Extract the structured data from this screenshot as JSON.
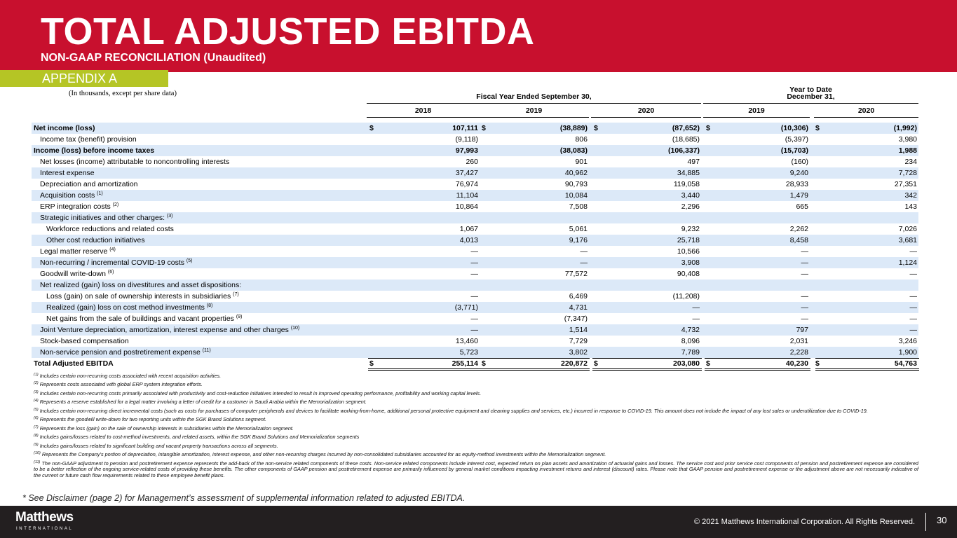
{
  "header": {
    "title": "TOTAL ADJUSTED EBITDA",
    "subtitle": "NON-GAAP RECONCILIATION (Unaudited)",
    "tag": "APPENDIX A"
  },
  "table": {
    "note": "(In thousands, except per share data)",
    "groups": [
      {
        "lines": [
          "Fiscal Year Ended September 30,"
        ],
        "span": 3
      },
      {
        "lines": [
          "Year to Date",
          "December 31,"
        ],
        "span": 2
      }
    ],
    "columns": [
      "2018",
      "2019",
      "2020",
      "2019",
      "2020"
    ],
    "rows": [
      {
        "label": "Net income (loss)",
        "level": 0,
        "bold": true,
        "currency": "$",
        "values": [
          "107,111",
          "(38,889)",
          "(87,652)",
          "(10,306)",
          "(1,992)"
        ]
      },
      {
        "label": "Income tax (benefit) provision",
        "level": 1,
        "values": [
          "(9,118)",
          "806",
          "(18,685)",
          "(5,397)",
          "3,980"
        ]
      },
      {
        "label": "Income (loss) before income taxes",
        "level": 0,
        "bold": true,
        "values": [
          "97,993",
          "(38,083)",
          "(106,337)",
          "(15,703)",
          "1,988"
        ]
      },
      {
        "label": "Net losses (income) attributable to noncontrolling interests",
        "level": 1,
        "values": [
          "260",
          "901",
          "497",
          "(160)",
          "234"
        ]
      },
      {
        "label": "Interest expense",
        "level": 1,
        "values": [
          "37,427",
          "40,962",
          "34,885",
          "9,240",
          "7,728"
        ]
      },
      {
        "label": "Depreciation and amortization",
        "level": 1,
        "values": [
          "76,974",
          "90,793",
          "119,058",
          "28,933",
          "27,351"
        ]
      },
      {
        "label": "Acquisition costs",
        "note": "(1)",
        "level": 1,
        "values": [
          "11,104",
          "10,084",
          "3,440",
          "1,479",
          "342"
        ]
      },
      {
        "label": "ERP integration costs",
        "note": "(2)",
        "level": 1,
        "values": [
          "10,864",
          "7,508",
          "2,296",
          "665",
          "143"
        ]
      },
      {
        "label": "Strategic initiatives and other charges:",
        "note": "(3)",
        "level": 1,
        "values": []
      },
      {
        "label": "Workforce reductions and related costs",
        "level": 2,
        "values": [
          "1,067",
          "5,061",
          "9,232",
          "2,262",
          "7,026"
        ]
      },
      {
        "label": "Other cost reduction initiatives",
        "level": 2,
        "values": [
          "4,013",
          "9,176",
          "25,718",
          "8,458",
          "3,681"
        ]
      },
      {
        "label": "Legal matter reserve",
        "note": "(4)",
        "level": 1,
        "values": [
          "—",
          "—",
          "10,566",
          "—",
          "—"
        ]
      },
      {
        "label": "Non-recurring / incremental COVID-19 costs",
        "note": "(5)",
        "level": 1,
        "values": [
          "—",
          "—",
          "3,908",
          "—",
          "1,124"
        ]
      },
      {
        "label": "Goodwill write-down",
        "note": "(6)",
        "level": 1,
        "values": [
          "—",
          "77,572",
          "90,408",
          "—",
          "—"
        ]
      },
      {
        "label": "Net realized (gain) loss on divestitures and asset dispositions:",
        "level": 1,
        "values": []
      },
      {
        "label": "Loss (gain) on sale of ownership interests in subsidiaries",
        "note": "(7)",
        "level": 2,
        "values": [
          "—",
          "6,469",
          "(11,208)",
          "—",
          "—"
        ]
      },
      {
        "label": "Realized (gain) loss on cost method investments",
        "note": "(8)",
        "level": 2,
        "values": [
          "(3,771)",
          "4,731",
          "—",
          "—",
          "—"
        ]
      },
      {
        "label": "Net gains from the sale of buildings and vacant properties",
        "note": "(9)",
        "level": 2,
        "values": [
          "—",
          "(7,347)",
          "—",
          "—",
          "—"
        ]
      },
      {
        "label": "Joint Venture depreciation, amortization, interest expense and other charges",
        "note": "(10)",
        "level": 1,
        "values": [
          "—",
          "1,514",
          "4,732",
          "797",
          "—"
        ]
      },
      {
        "label": "Stock-based compensation",
        "level": 1,
        "values": [
          "13,460",
          "7,729",
          "8,096",
          "2,031",
          "3,246"
        ]
      },
      {
        "label": "Non-service pension and postretirement expense",
        "note": "(11)",
        "level": 1,
        "values": [
          "5,723",
          "3,802",
          "7,789",
          "2,228",
          "1,900"
        ]
      },
      {
        "label": "Total Adjusted EBITDA",
        "level": 0,
        "bold": true,
        "total": true,
        "currency": "$",
        "values": [
          "255,114",
          "220,872",
          "203,080",
          "40,230",
          "54,763"
        ]
      }
    ]
  },
  "footnotes": [
    {
      "mark": "(1)",
      "text": "Includes certain non-recurring costs associated with recent acquisition activities."
    },
    {
      "mark": "(2)",
      "text": "Represents costs associated with global ERP system integration efforts."
    },
    {
      "mark": "(3)",
      "text": "Includes certain non-recurring costs primarily associated with productivity and cost-reduction initiatives intended to result in improved operating performance, profitability and working capital levels."
    },
    {
      "mark": "(4)",
      "text": "Represents a reserve established for a legal matter involving a letter of credit for a customer in Saudi Arabia within the Memorialization segment."
    },
    {
      "mark": "(5)",
      "text": "Includes certain non-recurring direct incremental costs (such as costs for purchases of computer peripherals and devices to facilitate working-from-home, additional personal protective equipment and cleaning supplies and services, etc.) incurred in response to COVID-19.  This amount does not include the impact of any lost sales or underutilization due to COVID-19."
    },
    {
      "mark": "(6)",
      "text": "Represents the goodwill write-down for two reporting units within the SGK Brand Solutions segment."
    },
    {
      "mark": "(7)",
      "text": "Represents the loss (gain) on the sale of ownership interests in subsidiaries within the Memorialization segment."
    },
    {
      "mark": "(8)",
      "text": "Includes gains/losses related to cost-method investments, and related assets, within the SGK Brand Solutions and Memorialization segments"
    },
    {
      "mark": "(9)",
      "text": "Includes gains/losses related to significant building and vacant property transactions across all segments."
    },
    {
      "mark": "(10)",
      "text": "Represents the Company's portion of depreciation, intangible amortization, interest expense, and other non-recurring charges incurred by non-consolidated subsidiaries accounted for as equity-method investments within the Memorialization segment."
    },
    {
      "mark": "(11)",
      "text": "The non-GAAP adjustment to pension and postretirement expense represents the add-back of the non-service related components of these costs.  Non-service related components include interest cost, expected return on plan assets and amortization of actuarial gains and losses.  The service cost and prior service cost components of pension and postretirement expense are considered to be a better reflection of the ongoing service-related costs of providing these benefits.  The other components of GAAP pension and postretirement expense are primarily influenced by general market conditions impacting investment returns and interest (discount) rates.  Please note that GAAP pension and postretirement expense or the adjustment above are not necessarily indicative of the current or future cash flow requirements related to these employee benefit plans."
    }
  ],
  "disclaimer": "* See Disclaimer (page 2) for Management’s assessment of supplemental information related to adjusted EBITDA.",
  "footer": {
    "logo": "Matthews",
    "logo_sub": "INTERNATIONAL",
    "copyright": "© 2021 Matthews International Corporation. All Rights Reserved.",
    "page": "30"
  }
}
